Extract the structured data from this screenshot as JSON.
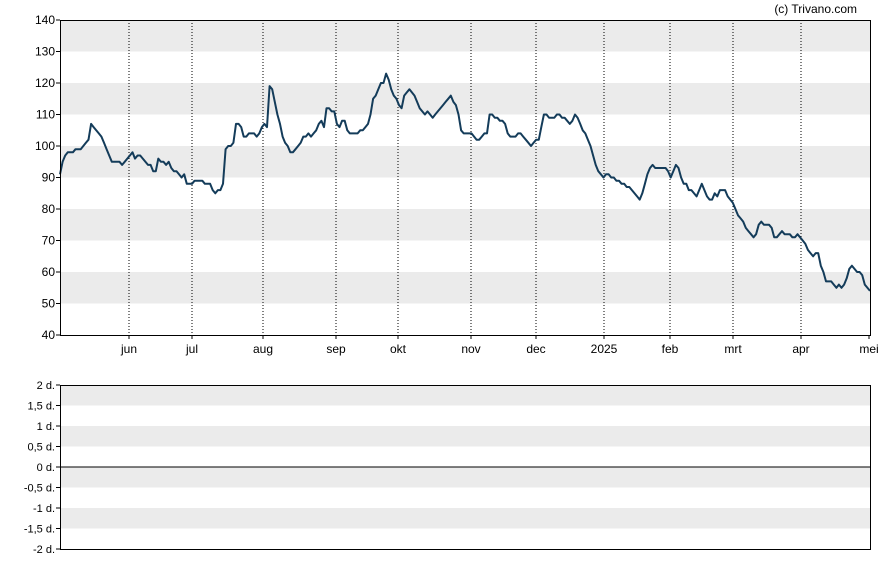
{
  "credit": "(c) Trivano.com",
  "colors": {
    "line": "#143c5a",
    "band": "#ebebeb",
    "frame": "#000000",
    "grid": "#000000"
  },
  "chart_data": [
    {
      "type": "line",
      "y_ticks": [
        40,
        50,
        60,
        70,
        80,
        90,
        100,
        110,
        120,
        130,
        140
      ],
      "ylim": [
        40,
        140
      ],
      "x_month_labels": [
        "jun",
        "jul",
        "aug",
        "sep",
        "okt",
        "nov",
        "dec",
        "2025",
        "feb",
        "mrt",
        "apr",
        "mei"
      ],
      "grid": "vertical dotted at month starts, alternating horizontal bands",
      "series": [
        {
          "values": [
            91,
            95,
            97,
            98,
            98,
            98,
            99,
            99,
            99,
            100,
            101,
            102,
            107,
            106,
            105,
            104,
            103,
            101,
            99,
            97,
            95,
            95,
            95,
            95,
            94,
            95,
            96,
            97,
            98,
            96,
            97,
            97,
            96,
            95,
            94,
            94,
            92,
            92,
            96,
            95,
            95,
            94,
            95,
            93,
            92,
            92,
            91,
            90,
            91,
            88,
            88,
            88,
            89,
            89,
            89,
            89,
            88,
            88,
            88,
            86,
            85,
            86,
            86,
            88,
            99,
            100,
            100,
            101,
            107,
            107,
            106,
            103,
            103,
            104,
            104,
            104,
            103,
            104,
            106,
            107,
            106,
            119,
            118,
            114,
            110,
            107,
            103,
            101,
            100,
            98,
            98,
            99,
            100,
            101,
            103,
            103,
            104,
            103,
            104,
            105,
            107,
            108,
            106,
            112,
            112,
            111,
            111,
            107,
            106,
            108,
            108,
            105,
            104,
            104,
            104,
            104,
            105,
            105,
            106,
            107,
            110,
            115,
            116,
            118,
            120,
            120,
            123,
            121,
            118,
            116,
            115,
            113,
            112,
            116,
            117,
            118,
            117,
            116,
            114,
            112,
            111,
            110,
            111,
            110,
            109,
            110,
            111,
            112,
            113,
            114,
            115,
            116,
            114,
            113,
            110,
            105,
            104,
            104,
            104,
            104,
            103,
            102,
            102,
            103,
            104,
            104,
            110,
            110,
            109,
            109,
            108,
            108,
            107,
            104,
            103,
            103,
            103,
            104,
            104,
            103,
            102,
            101,
            100,
            101,
            102,
            102,
            106,
            110,
            110,
            109,
            109,
            109,
            110,
            110,
            109,
            109,
            108,
            107,
            108,
            110,
            109,
            107,
            105,
            104,
            102,
            100,
            97,
            94,
            92,
            91,
            90,
            91,
            91,
            90,
            90,
            89,
            89,
            88,
            88,
            87,
            87,
            86,
            85,
            84,
            83,
            85,
            88,
            91,
            93,
            94,
            93,
            93,
            93,
            93,
            93,
            92,
            90,
            92,
            94,
            93,
            90,
            88,
            88,
            86,
            86,
            85,
            84,
            86,
            88,
            86,
            84,
            83,
            83,
            85,
            84,
            86,
            86,
            86,
            84,
            83,
            82,
            80,
            78,
            77,
            76,
            74,
            73,
            72,
            71,
            72,
            75,
            76,
            75,
            75,
            75,
            74,
            71,
            71,
            72,
            73,
            72,
            72,
            72,
            71,
            71,
            72,
            71,
            70,
            69,
            67,
            66,
            65,
            66,
            66,
            62,
            60,
            57,
            57,
            57,
            56,
            55,
            56,
            55,
            56,
            58,
            61,
            62,
            61,
            60,
            60,
            59,
            56,
            55,
            54
          ]
        }
      ]
    },
    {
      "type": "line",
      "y_ticks": [
        "2 d.",
        "1,5 d.",
        "1 d.",
        "0,5 d.",
        "0 d.",
        "-0,5 d.",
        "-1 d.",
        "-1,5 d.",
        "-2 d."
      ],
      "ylim": [
        -2,
        2
      ],
      "series": []
    }
  ]
}
